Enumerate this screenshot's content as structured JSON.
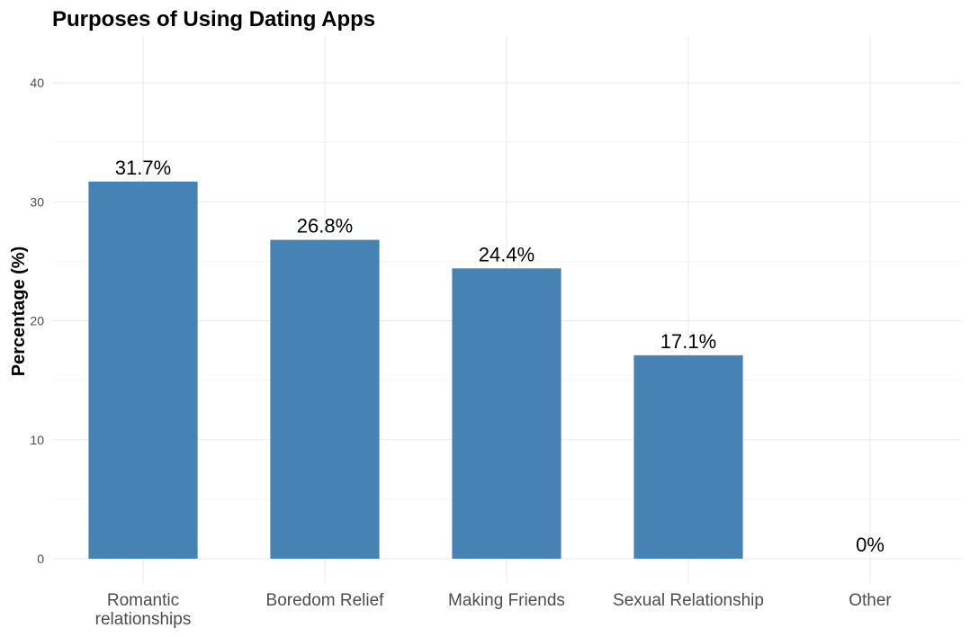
{
  "chart_data": {
    "type": "bar",
    "title": "Purposes of Using Dating Apps",
    "xlabel": "",
    "ylabel": "Percentage (%)",
    "categories": [
      [
        "Romantic",
        "relationships"
      ],
      [
        "Boredom Relief"
      ],
      [
        "Making Friends"
      ],
      [
        "Sexual Relationship"
      ],
      [
        "Other"
      ]
    ],
    "values": [
      31.7,
      26.8,
      24.4,
      17.1,
      0
    ],
    "value_labels": [
      "31.7%",
      "26.8%",
      "24.4%",
      "17.1%",
      "0%"
    ],
    "ylim": [
      0,
      42
    ],
    "yticks": [
      0,
      10,
      20,
      30,
      40
    ],
    "grid": true,
    "legend": "none",
    "bar_color": "#4682B4"
  }
}
